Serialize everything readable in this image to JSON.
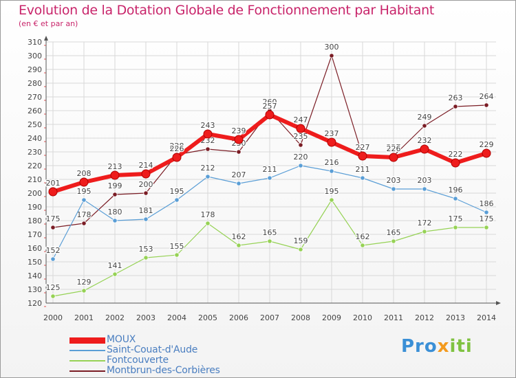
{
  "colors": {
    "title": "#c8246a",
    "grid": "#d8d8d8",
    "axis": "#555555",
    "label": "#444444"
  },
  "chart_data": {
    "type": "line",
    "title": "Evolution de la Dotation Globale de Fonctionnement par Habitant",
    "subtitle": "(en € et par an)",
    "x": [
      "2000",
      "2001",
      "2002",
      "2003",
      "2004",
      "2005",
      "2006",
      "2007",
      "2008",
      "2009",
      "2010",
      "2011",
      "2012",
      "2013",
      "2014"
    ],
    "ylim": [
      120,
      310
    ],
    "ytick_step": 10,
    "grid": true,
    "legend_position": "bottom-left",
    "series": [
      {
        "name": "Montbrun-des-Corbières",
        "color": "#7a1c24",
        "width": 1.2,
        "values": [
          175,
          178,
          199,
          200,
          228,
          232,
          230,
          260,
          235,
          300,
          227,
          227,
          249,
          263,
          264
        ]
      },
      {
        "name": "Fontcouverte",
        "color": "#96d255",
        "width": 1.2,
        "values": [
          125,
          129,
          141,
          153,
          155,
          178,
          162,
          165,
          159,
          195,
          162,
          165,
          172,
          175,
          175
        ]
      },
      {
        "name": "Saint-Couat-d'Aude",
        "color": "#5a9ed6",
        "width": 1.2,
        "values": [
          152,
          195,
          180,
          181,
          195,
          212,
          207,
          211,
          220,
          216,
          211,
          203,
          203,
          196,
          186
        ]
      },
      {
        "name": "MOUX",
        "color": "#ee1c1c",
        "width": 6,
        "values": [
          201,
          208,
          213,
          214,
          226,
          243,
          239,
          257,
          247,
          237,
          227,
          226,
          232,
          222,
          229
        ]
      }
    ],
    "legend_order": [
      "MOUX",
      "Saint-Couat-d'Aude",
      "Fontcouverte",
      "Montbrun-des-Corbières"
    ]
  },
  "logo": {
    "part1": "Pro",
    "part2": "x",
    "part3": "iti"
  }
}
